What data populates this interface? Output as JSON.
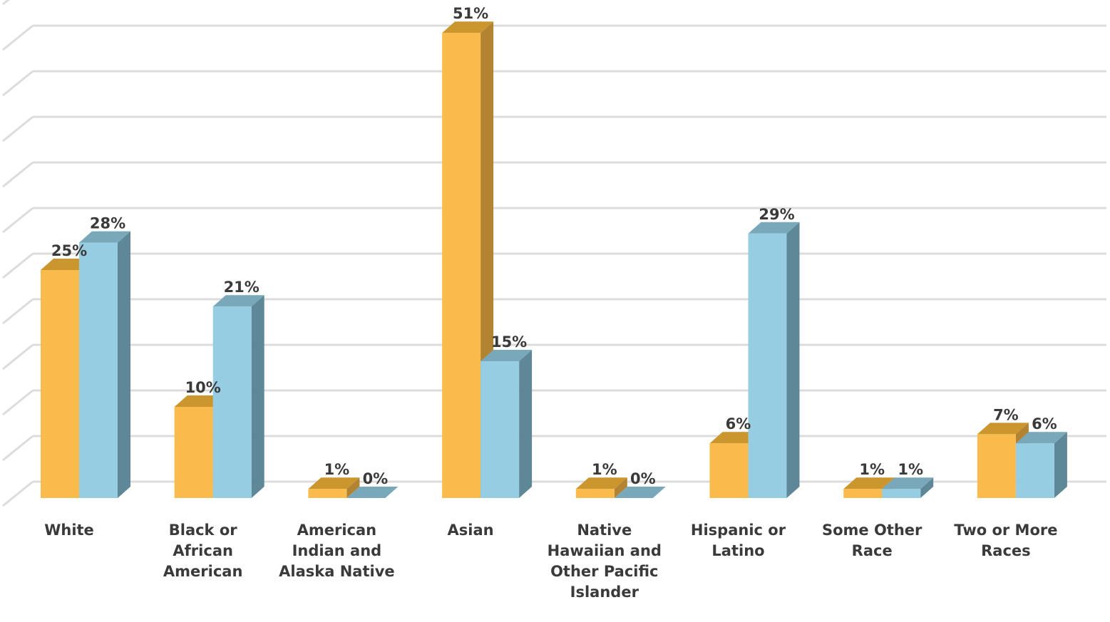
{
  "chart_data": {
    "type": "bar",
    "categories": [
      "White",
      "Black or African American",
      "American Indian and Alaska Native",
      "Asian",
      "Native Hawaiian and Other Pacific Islander",
      "Hispanic or Latino",
      "Some Other Race",
      "Two or More Races"
    ],
    "series": [
      {
        "values": [
          25,
          10,
          1,
          51,
          1,
          6,
          1,
          7
        ],
        "labels": [
          "25%",
          "10%",
          "1%",
          "51%",
          "1%",
          "6%",
          "1%",
          "7%"
        ],
        "color": "#F9BB4C",
        "side_color": "#B28330",
        "top_color": "#CC962F"
      },
      {
        "values": [
          28,
          21,
          0,
          15,
          0,
          29,
          1,
          6
        ],
        "labels": [
          "28%",
          "21%",
          "0%",
          "15%",
          "0%",
          "29%",
          "1%",
          "6%"
        ],
        "color": "#96CDE2",
        "side_color": "#5E8898",
        "top_color": "#78A8BA"
      }
    ],
    "ylim": [
      0,
      55
    ],
    "grid": true,
    "legend": "none",
    "three_d": true
  },
  "colors": {
    "grid": "#dcdcdc",
    "text": "#3a3a3a"
  }
}
